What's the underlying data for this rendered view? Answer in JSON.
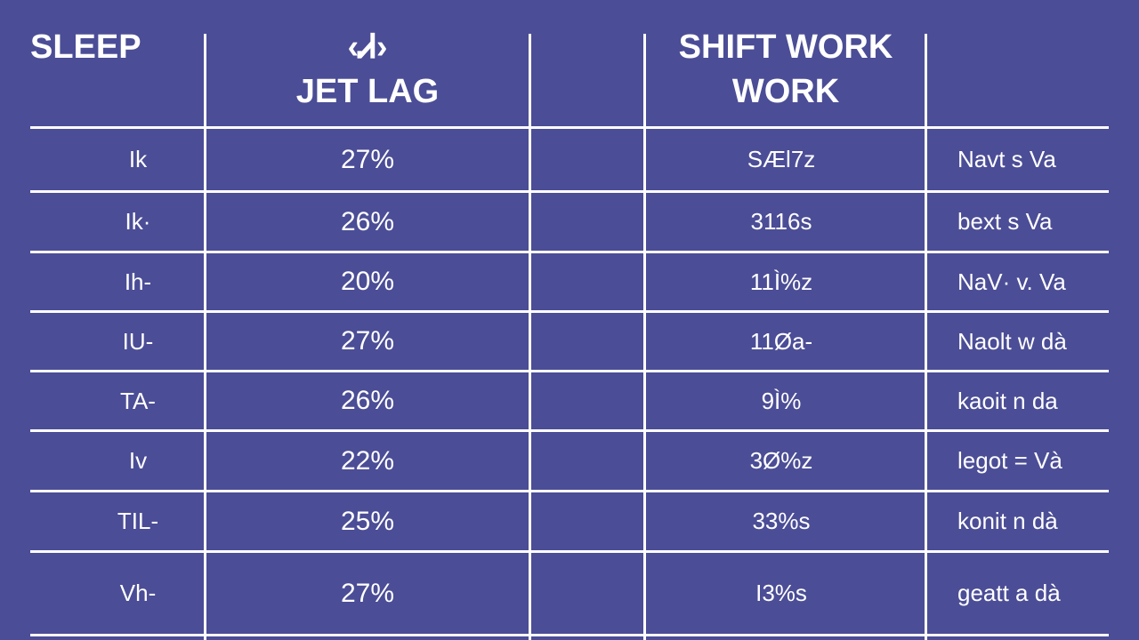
{
  "headers": {
    "col1": "SLEEP",
    "col2_top": "‹Ꮧ›",
    "col2": "JET LAG",
    "col3": "",
    "col4_line1": "SHIFT WORK",
    "col4_line2": "WORK",
    "col5": ""
  },
  "chart_data": {
    "type": "table",
    "columns": [
      "SLEEP",
      "JET LAG",
      "",
      "SHIFT WORK WORK",
      ""
    ],
    "rows": [
      {
        "label": "Ik",
        "jet_lag": "27%",
        "blank": "",
        "shift_work": "SÆl7z",
        "note": "Navt s Va"
      },
      {
        "label": "Ik·",
        "jet_lag": "26%",
        "blank": "",
        "shift_work": "3116s",
        "note": "bext s Va"
      },
      {
        "label": "Ih-",
        "jet_lag": "20%",
        "blank": "",
        "shift_work": "11Ì%z",
        "note": "NaV· v. Va"
      },
      {
        "label": "IU-",
        "jet_lag": "27%",
        "blank": "",
        "shift_work": "11Øa-",
        "note": "Naolt w dà"
      },
      {
        "label": "TA-",
        "jet_lag": "26%",
        "blank": "",
        "shift_work": "9Ì%",
        "note": "kaoit n da"
      },
      {
        "label": "Iv",
        "jet_lag": "22%",
        "blank": "",
        "shift_work": "3Ø%z",
        "note": "legot = Và"
      },
      {
        "label": "TIL-",
        "jet_lag": "25%",
        "blank": "",
        "shift_work": "33%s",
        "note": "konit n dà"
      },
      {
        "label": "Vh-",
        "jet_lag": "27%",
        "blank": "",
        "shift_work": "I3%s",
        "note": "geatt a dà"
      }
    ]
  },
  "colors": {
    "background": "#4b4d96",
    "lines": "#ffffff",
    "text": "#ffffff"
  }
}
